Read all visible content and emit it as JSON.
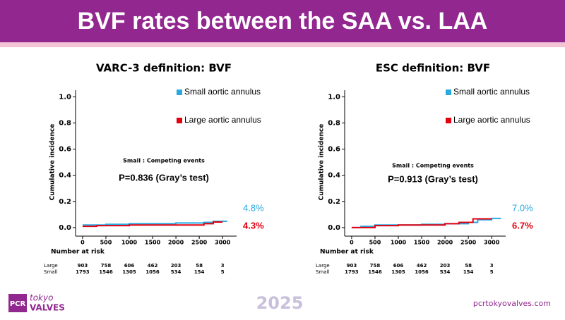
{
  "header": {
    "title": "BVF rates between the SAA vs. LAA"
  },
  "footer": {
    "brand_mark": "PCR",
    "brand_top": "tokyo",
    "brand_bottom": "VALVES",
    "year": "2025",
    "url": "pcrtokyovalves.com"
  },
  "chart_data": [
    {
      "type": "line",
      "step": true,
      "title": "VARC-3 definition: BVF",
      "ylabel": "Cumulative incidence",
      "annotations": [
        "Small : Competing events",
        "P=0.836 (Gray’s test)"
      ],
      "legend": "top-right",
      "xlim": [
        -150,
        3300
      ],
      "xticks": [
        0,
        500,
        1000,
        1500,
        2000,
        2500,
        3000
      ],
      "ylim": [
        -0.065,
        1.05
      ],
      "yticks": [
        {
          "value": 0,
          "label": "0.0"
        },
        0.2,
        0.4,
        0.6,
        0.8,
        {
          "value": 1,
          "label": "1.0"
        }
      ],
      "series": [
        {
          "name": "Small aortic annulus",
          "color": "#29a9e0",
          "x": [
            0,
            500,
            1000,
            2000,
            2600,
            2800,
            3100
          ],
          "values": [
            0.02,
            0.025,
            0.03,
            0.035,
            0.04,
            0.048,
            0.048
          ],
          "value_labels": [
            null,
            null,
            null,
            null,
            null,
            null,
            "4.8%"
          ]
        },
        {
          "name": "Large aortic annulus",
          "color": "#e3000f",
          "x": [
            0,
            300,
            1000,
            2500,
            2600,
            2800,
            3000
          ],
          "values": [
            0.01,
            0.015,
            0.02,
            0.02,
            0.03,
            0.043,
            0.043
          ],
          "value_labels": [
            null,
            null,
            null,
            null,
            null,
            null,
            "4.3%"
          ]
        }
      ],
      "risk_table": {
        "title": "Number at risk",
        "rows": [
          {
            "name": "Large",
            "values": [
              903,
              758,
              606,
              462,
              203,
              58,
              3
            ]
          },
          {
            "name": "Small",
            "values": [
              1793,
              1546,
              1305,
              1056,
              534,
              154,
              5
            ]
          }
        ]
      }
    },
    {
      "type": "line",
      "step": true,
      "title": "ESC definition: BVF",
      "ylabel": "Cumulative incidence",
      "annotations": [
        "Small : Competing events",
        "P=0.913 (Gray’s test)"
      ],
      "legend": "top-right",
      "xlim": [
        -150,
        3300
      ],
      "xticks": [
        0,
        500,
        1000,
        1500,
        2000,
        2500,
        3000
      ],
      "ylim": [
        -0.065,
        1.05
      ],
      "yticks": [
        {
          "value": 0,
          "label": "0.0"
        },
        0.2,
        0.4,
        0.6,
        0.8,
        {
          "value": 1,
          "label": "1.0"
        }
      ],
      "series": [
        {
          "name": "Small aortic annulus",
          "color": "#29a9e0",
          "x": [
            0,
            200,
            500,
            1500,
            2000,
            2500,
            2700,
            3000,
            3200
          ],
          "values": [
            0,
            0.01,
            0.02,
            0.025,
            0.03,
            0.04,
            0.06,
            0.07,
            0.07
          ],
          "value_labels": [
            null,
            null,
            null,
            null,
            null,
            null,
            null,
            null,
            "7.0%"
          ]
        },
        {
          "name": "Large aortic annulus",
          "color": "#e3000f",
          "x": [
            0,
            500,
            1000,
            2000,
            2300,
            2600,
            3000
          ],
          "values": [
            0,
            0.015,
            0.02,
            0.03,
            0.04,
            0.067,
            0.067
          ],
          "value_labels": [
            null,
            null,
            null,
            null,
            null,
            null,
            "6.7%"
          ]
        }
      ],
      "risk_table": {
        "title": "Number at risk",
        "rows": [
          {
            "name": "Large",
            "values": [
              903,
              758,
              606,
              462,
              203,
              58,
              3
            ]
          },
          {
            "name": "Small",
            "values": [
              1793,
              1546,
              1305,
              1056,
              534,
              154,
              5
            ]
          }
        ]
      }
    }
  ]
}
